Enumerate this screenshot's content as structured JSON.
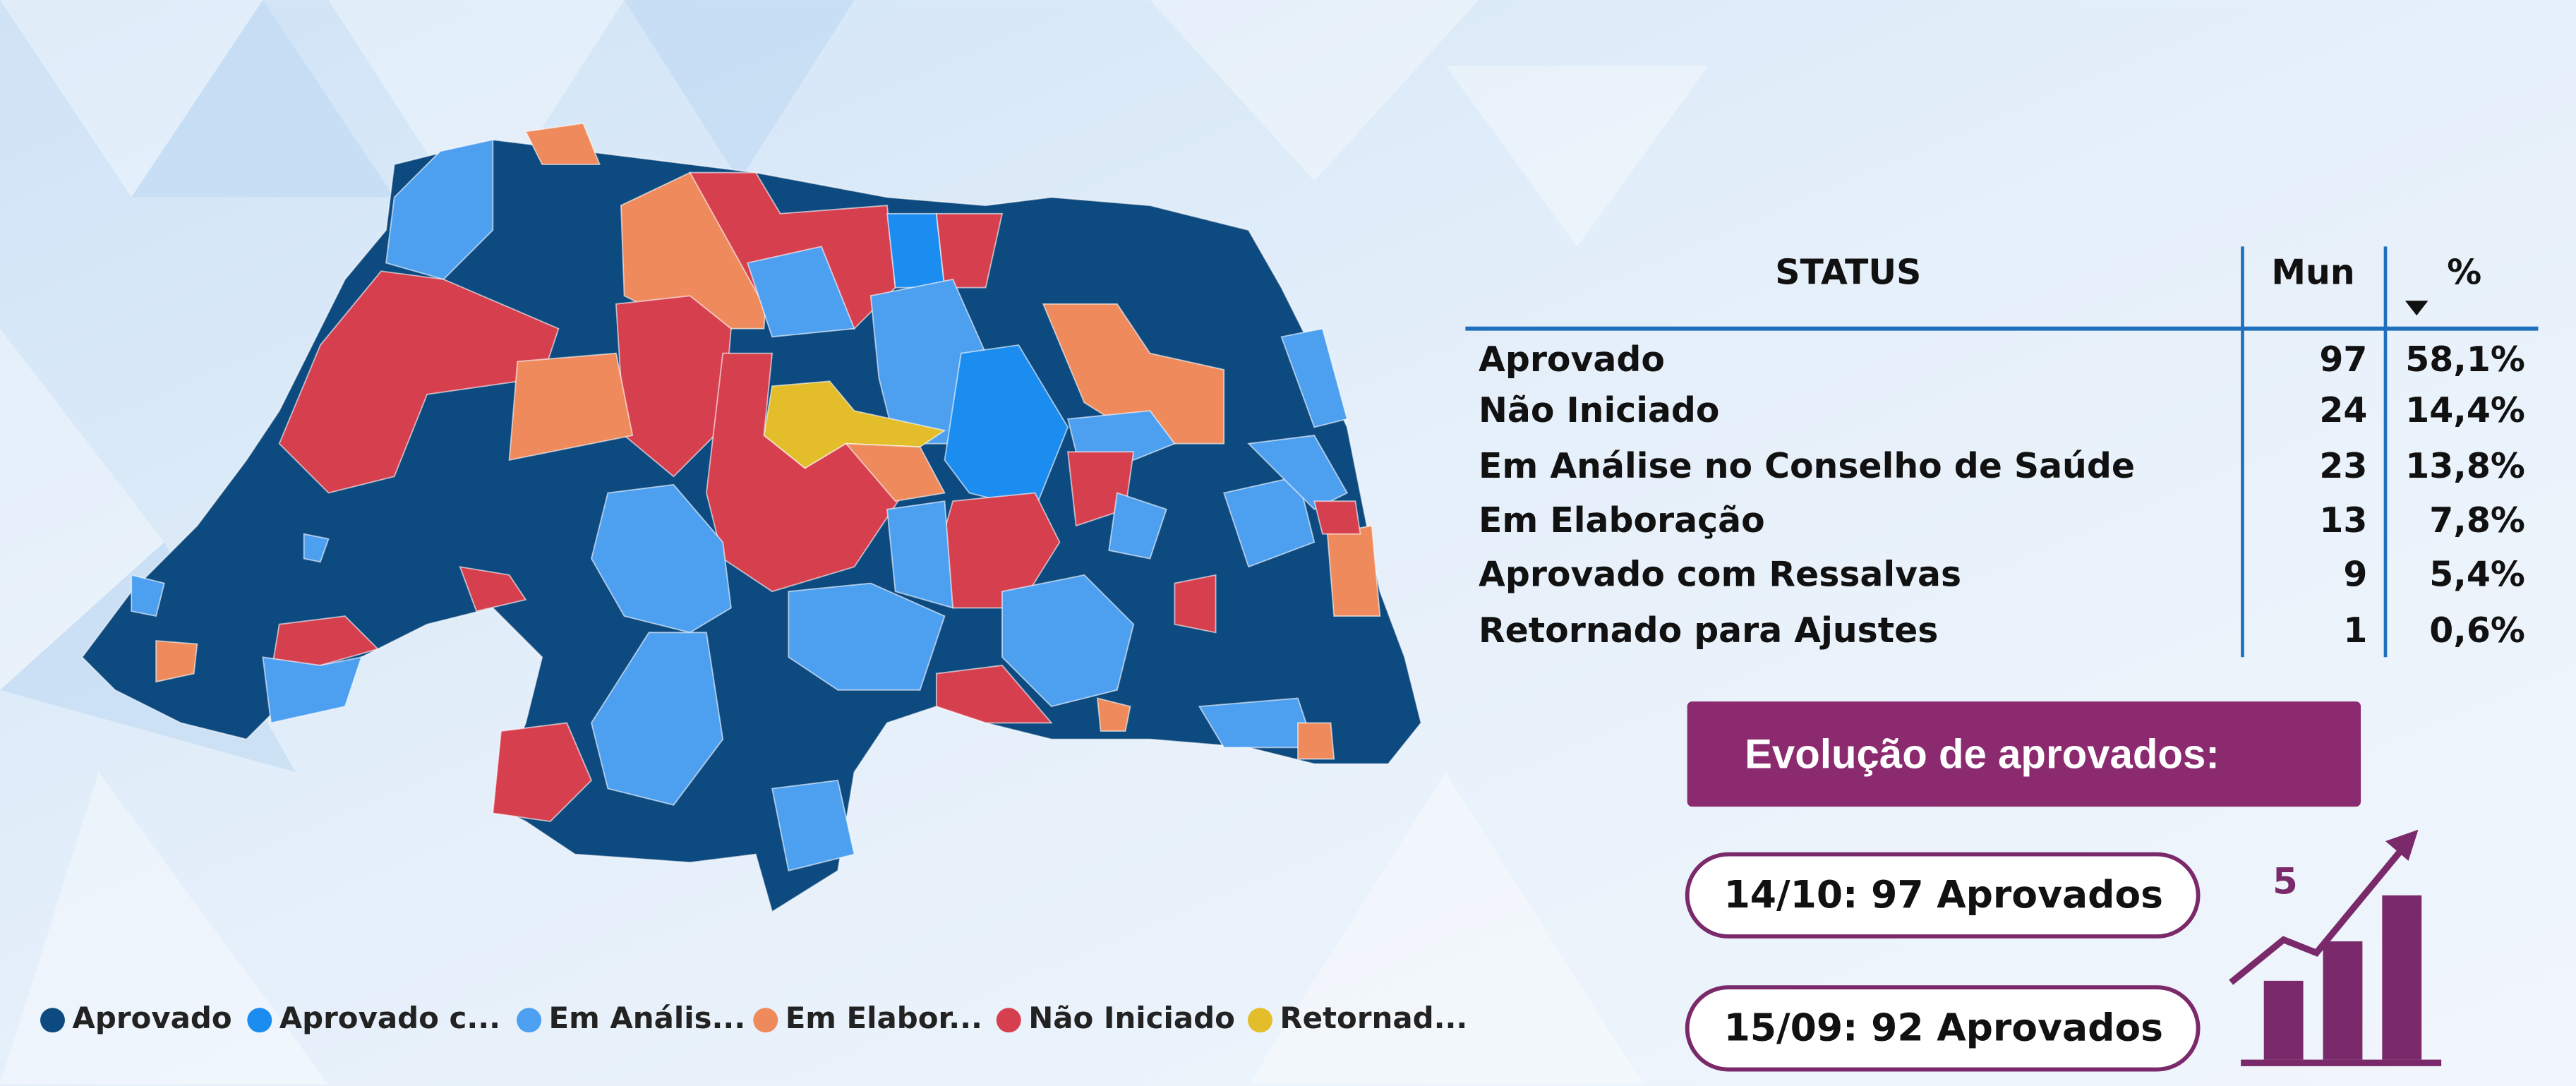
{
  "table": {
    "headers": [
      "STATUS",
      "Mun",
      "%"
    ],
    "rows": [
      [
        "Aprovado",
        97,
        "58,1%"
      ],
      [
        "Não Iniciado",
        24,
        "14,4%"
      ],
      [
        "Em Análise no Conselho de Saúde",
        23,
        "13,8%"
      ],
      [
        "Em Elaboração",
        13,
        "7,8%"
      ],
      [
        "Aprovado com Ressalvas",
        9,
        "5,4%"
      ],
      [
        "Retornado para Ajustes",
        1,
        "0,6%"
      ]
    ]
  },
  "legend": [
    {
      "label": "Aprovado",
      "color": "#0d4a80"
    },
    {
      "label": "Aprovado c...",
      "color": "#1b8cf0"
    },
    {
      "label": "Em Anális...",
      "color": "#4d9ff0"
    },
    {
      "label": "Em Elabor...",
      "color": "#ee8a5c"
    },
    {
      "label": "Não Iniciado",
      "color": "#d6404e"
    },
    {
      "label": "Retornad...",
      "color": "#e3bd2a"
    }
  ],
  "evolution": {
    "title": "Evolução de aprovados:",
    "entries": [
      "14/10: 97 Aprovados",
      "15/09: 92 Aprovados"
    ],
    "difference": "5"
  }
}
